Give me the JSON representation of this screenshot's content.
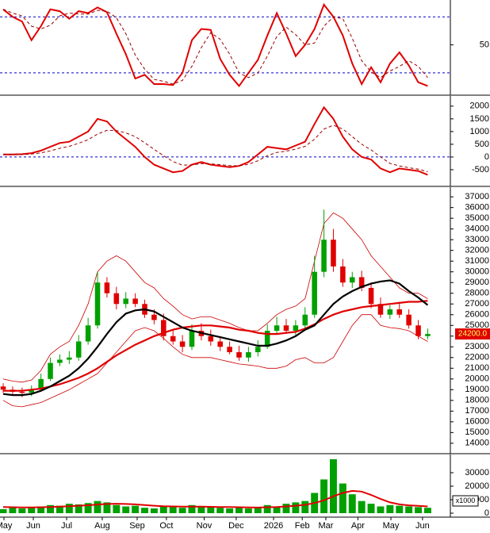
{
  "chart_data": [
    {
      "type": "line",
      "ylim": [
        -3,
        98
      ],
      "yticks": [
        50
      ],
      "ref_lines": [
        80,
        20
      ],
      "ref_color": "#0000cc",
      "series": [
        {
          "color": "#e00000",
          "width": 2,
          "dash": false,
          "values": [
            88,
            80,
            75,
            55,
            70,
            88,
            86,
            78,
            86,
            84,
            90,
            85,
            62,
            40,
            14,
            18,
            8,
            8,
            7,
            20,
            55,
            67,
            66,
            35,
            18,
            6,
            20,
            34,
            60,
            84,
            62,
            38,
            50,
            67,
            93,
            80,
            60,
            30,
            8,
            26,
            10,
            30,
            42,
            28,
            10,
            6
          ]
        },
        {
          "color": "#990000",
          "width": 1,
          "dash": true,
          "values": [
            88,
            84,
            81,
            70,
            67,
            71,
            81,
            84,
            83,
            83,
            87,
            86,
            79,
            62,
            39,
            24,
            13,
            11,
            8,
            12,
            27,
            47,
            63,
            56,
            40,
            20,
            15,
            20,
            38,
            59,
            69,
            61,
            50,
            52,
            70,
            80,
            78,
            57,
            33,
            21,
            15,
            22,
            27,
            33,
            27,
            15
          ]
        }
      ]
    },
    {
      "type": "line",
      "ylim": [
        -1125,
        2400
      ],
      "yticks": [
        -500,
        0,
        500,
        1000,
        1500,
        2000
      ],
      "ref_lines": [
        0
      ],
      "ref_color": "#0000cc",
      "series": [
        {
          "color": "#e00000",
          "width": 2,
          "dash": false,
          "values": [
            100,
            100,
            110,
            150,
            250,
            400,
            550,
            600,
            800,
            1000,
            1500,
            1400,
            1000,
            700,
            400,
            0,
            -300,
            -450,
            -600,
            -550,
            -300,
            -200,
            -300,
            -350,
            -400,
            -350,
            -200,
            100,
            400,
            350,
            300,
            450,
            600,
            1300,
            1950,
            1500,
            800,
            300,
            0,
            -100,
            -450,
            -600,
            -450,
            -500,
            -550,
            -700
          ]
        },
        {
          "color": "#990000",
          "width": 1,
          "dash": true,
          "values": [
            100,
            100,
            102,
            115,
            160,
            240,
            340,
            420,
            540,
            680,
            900,
            1050,
            1040,
            950,
            800,
            560,
            300,
            50,
            -180,
            -320,
            -310,
            -260,
            -270,
            -300,
            -340,
            -345,
            -290,
            -150,
            50,
            180,
            230,
            310,
            420,
            700,
            1100,
            1250,
            1100,
            800,
            500,
            280,
            0,
            -250,
            -350,
            -420,
            -480,
            -580
          ]
        }
      ]
    },
    {
      "type": "candlestick",
      "ylim": [
        13100,
        37900
      ],
      "yticks": [
        14000,
        15000,
        16000,
        17000,
        18000,
        19000,
        20000,
        21000,
        22000,
        23000,
        24000,
        25000,
        26000,
        27000,
        28000,
        29000,
        30000,
        31000,
        32000,
        33000,
        34000,
        35000,
        36000,
        37000
      ],
      "up_color": "#00a000",
      "down_color": "#e00000",
      "last_label": "24200.0",
      "open": [
        19300,
        19000,
        18800,
        18700,
        19000,
        20000,
        21500,
        21800,
        22000,
        23500,
        25000,
        29000,
        28000,
        27000,
        27500,
        27000,
        26000,
        25500,
        24000,
        23500,
        23000,
        24500,
        24000,
        23500,
        23000,
        22500,
        22000,
        22500,
        23000,
        24500,
        25000,
        24500,
        25000,
        26000,
        30000,
        33000,
        30500,
        29000,
        29500,
        28500,
        27000,
        26000,
        26500,
        26000,
        25000,
        24000
      ],
      "high": [
        19600,
        19300,
        19200,
        19400,
        20500,
        22000,
        22300,
        22600,
        24100,
        25700,
        30000,
        29500,
        28600,
        28100,
        28000,
        27400,
        26500,
        26100,
        24600,
        24100,
        25100,
        25200,
        24600,
        24000,
        23500,
        23100,
        23000,
        23600,
        25100,
        25800,
        25600,
        25500,
        26700,
        31500,
        35800,
        34000,
        31200,
        30000,
        30100,
        29000,
        27600,
        26900,
        27200,
        26500,
        25500,
        24700
      ],
      "low": [
        18700,
        18500,
        18300,
        18400,
        18800,
        19800,
        21200,
        21400,
        21700,
        23200,
        24700,
        27600,
        26500,
        26600,
        26700,
        25700,
        25100,
        23600,
        23200,
        22500,
        22700,
        23600,
        23100,
        22600,
        22300,
        21700,
        21600,
        22100,
        22800,
        24200,
        24200,
        24100,
        24700,
        25700,
        29500,
        30000,
        28600,
        28500,
        28200,
        26600,
        25700,
        25600,
        25700,
        24700,
        23700,
        23700
      ],
      "close": [
        19000,
        18800,
        18700,
        19000,
        20000,
        21500,
        21800,
        22000,
        23500,
        25000,
        29000,
        28000,
        27000,
        27500,
        27000,
        26000,
        25500,
        24000,
        23500,
        23000,
        24500,
        24000,
        23500,
        23000,
        22500,
        22000,
        22500,
        23000,
        24500,
        25000,
        24500,
        25000,
        26000,
        30000,
        33000,
        30500,
        29000,
        29500,
        28500,
        27000,
        26000,
        26500,
        26000,
        25000,
        24000,
        24200
      ],
      "series": [
        {
          "color": "#cc0000",
          "width": 0.8,
          "values": [
            20000,
            19800,
            19700,
            19900,
            20800,
            22300,
            23000,
            23500,
            25000,
            27000,
            30000,
            31000,
            31500,
            31000,
            30000,
            29000,
            28500,
            27500,
            26800,
            26000,
            25600,
            25800,
            25800,
            25500,
            25200,
            24800,
            24500,
            24500,
            25200,
            26000,
            26500,
            26800,
            27500,
            31000,
            34500,
            35500,
            35000,
            34000,
            33000,
            31500,
            30500,
            29500,
            28500,
            28000,
            28000,
            27500
          ]
        },
        {
          "color": "#cc0000",
          "width": 0.8,
          "values": [
            18000,
            17500,
            17400,
            17600,
            17800,
            18200,
            18600,
            19000,
            19500,
            20000,
            20500,
            21500,
            22500,
            23500,
            24500,
            24800,
            24500,
            23800,
            23000,
            22300,
            22000,
            22000,
            22000,
            21800,
            21600,
            21400,
            21300,
            21200,
            21000,
            21000,
            21200,
            21800,
            22000,
            21500,
            21500,
            22000,
            23500,
            25000,
            26000,
            26000,
            25000,
            24800,
            24700,
            24500,
            24000,
            23500
          ]
        },
        {
          "color": "#e00000",
          "width": 2.2,
          "values": [
            18900,
            18900,
            18900,
            19000,
            19100,
            19300,
            19500,
            19800,
            20100,
            20500,
            21000,
            21600,
            22200,
            22700,
            23200,
            23600,
            24000,
            24300,
            24600,
            24800,
            24900,
            25000,
            25000,
            24900,
            24800,
            24600,
            24500,
            24300,
            24200,
            24200,
            24300,
            24400,
            24700,
            25100,
            25600,
            26000,
            26300,
            26500,
            26700,
            26800,
            26900,
            27000,
            27100,
            27200,
            27200,
            27300
          ]
        },
        {
          "color": "#000000",
          "width": 2.2,
          "values": [
            18600,
            18500,
            18500,
            18600,
            18900,
            19300,
            19800,
            20300,
            21000,
            21900,
            23000,
            24200,
            25300,
            26100,
            26400,
            26500,
            26300,
            25800,
            25300,
            24800,
            24500,
            24300,
            24100,
            23900,
            23700,
            23500,
            23300,
            23100,
            23100,
            23300,
            23600,
            24000,
            24600,
            25000,
            26000,
            27000,
            27700,
            28200,
            28600,
            28900,
            29100,
            29200,
            28900,
            28200,
            27600,
            26900
          ]
        }
      ]
    },
    {
      "type": "bar",
      "ylim": [
        -2350,
        43500
      ],
      "yticks": [
        0,
        10000,
        20000,
        30000
      ],
      "unit_label": "x1000",
      "xlim": [
        -0.34,
        47.4
      ],
      "xticks": [
        {
          "value": 0.08,
          "label": "May"
        },
        {
          "value": 3.19,
          "label": "Jun"
        },
        {
          "value": 6.72,
          "label": "Jul"
        },
        {
          "value": 10.5,
          "label": "Aug"
        },
        {
          "value": 14.2,
          "label": "Sep"
        },
        {
          "value": 17.3,
          "label": "Oct"
        },
        {
          "value": 21.3,
          "label": "Nov"
        },
        {
          "value": 24.7,
          "label": "Dec"
        },
        {
          "value": 28.66,
          "label": "2026"
        },
        {
          "value": 31.7,
          "label": "Feb"
        },
        {
          "value": 34.2,
          "label": "Mar"
        },
        {
          "value": 37.6,
          "label": "Apr"
        },
        {
          "value": 41.1,
          "label": "May"
        },
        {
          "value": 44.45,
          "label": "Jun"
        }
      ],
      "series": [
        {
          "style": "bar",
          "color": "#00a000",
          "values": [
            3000,
            4000,
            3500,
            4500,
            5000,
            6000,
            5500,
            7000,
            6500,
            7500,
            9000,
            8000,
            6000,
            5000,
            5500,
            4000,
            3500,
            5000,
            4500,
            4000,
            6000,
            5000,
            4500,
            4000,
            3500,
            4000,
            3500,
            4000,
            6000,
            5000,
            7000,
            8000,
            9000,
            15000,
            25000,
            40000,
            22000,
            14000,
            9000,
            7000,
            5000,
            6000,
            5500,
            5000,
            4500,
            4000
          ]
        },
        {
          "style": "line",
          "color": "#e00000",
          "values": [
            4500,
            4400,
            4300,
            4300,
            4400,
            4600,
            4900,
            5200,
            5500,
            5900,
            6400,
            6800,
            7000,
            6800,
            6500,
            6000,
            5500,
            5200,
            5000,
            4800,
            4800,
            4800,
            4700,
            4600,
            4500,
            4400,
            4300,
            4200,
            4400,
            4600,
            5000,
            5500,
            6200,
            7500,
            9500,
            12500,
            15000,
            16500,
            16000,
            13500,
            10500,
            8000,
            6500,
            5800,
            5400,
            5000
          ]
        }
      ]
    }
  ]
}
